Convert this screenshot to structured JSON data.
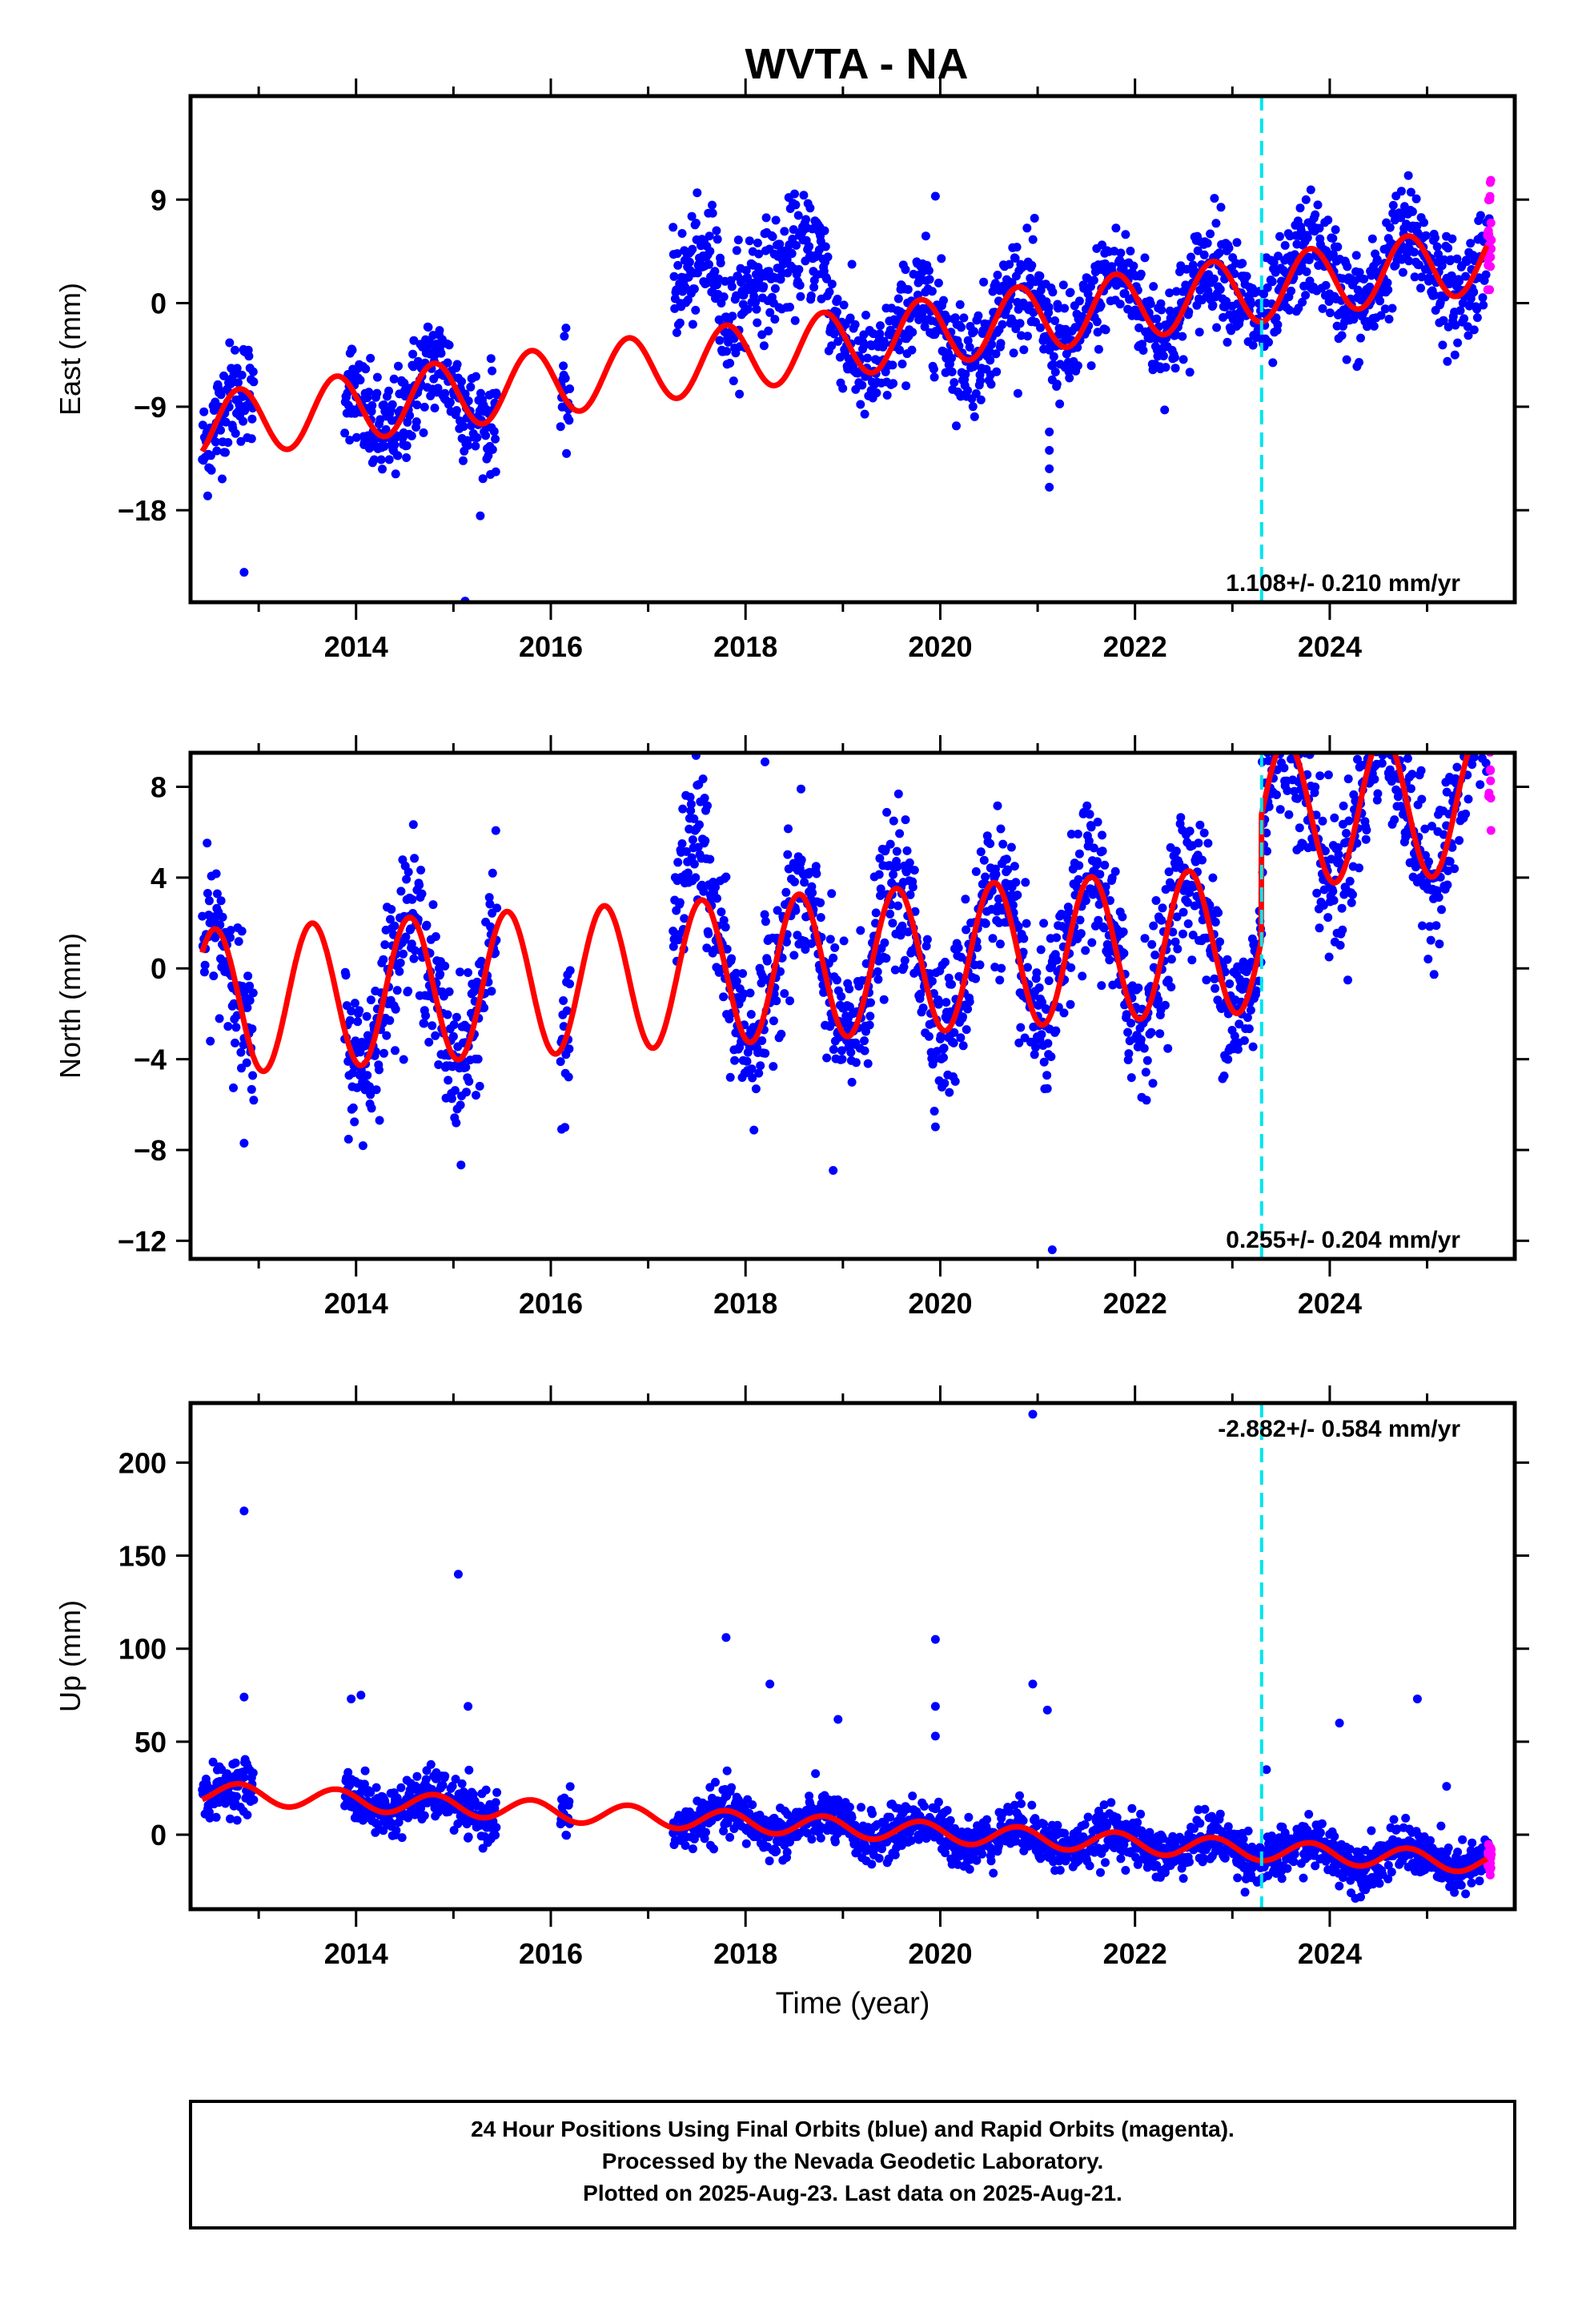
{
  "title": "WVTA - NA",
  "colors": {
    "final_orbits": "#0000ff",
    "rapid_orbits": "#ff00ff",
    "model": "#ff0000",
    "equipment_change": "#00e5ee",
    "frame": "#000000"
  },
  "chart_data": [
    {
      "type": "scatter",
      "ylabel": "East (mm)",
      "xlim": [
        2012.3,
        2025.9
      ],
      "ylim": [
        -26,
        18
      ],
      "xticks": [
        2014,
        2016,
        2018,
        2020,
        2022,
        2024
      ],
      "xtick_labels": [
        "2014",
        "2016",
        "2018",
        "2020",
        "2022",
        "2024"
      ],
      "yticks": [
        9,
        0,
        -9,
        -18
      ],
      "ytick_labels": [
        "9",
        "0",
        "−9",
        "−18"
      ],
      "velocity_text": "1.108+/- 0.210 mm/yr",
      "velocity_position": "bottom-right",
      "equipment_change_x": 2023.3,
      "model": {
        "offset": -10.8,
        "rate": 1.108,
        "t0": 2012.4,
        "amplitude": 2.9,
        "phase": 2012.55
      },
      "outliers": [
        [
          2012.85,
          -23.4
        ],
        [
          2015.12,
          -25.9
        ],
        [
          2019.95,
          9.3
        ],
        [
          2021.12,
          -11.2
        ],
        [
          2021.12,
          -12.8
        ],
        [
          2021.12,
          -14.4
        ],
        [
          2021.12,
          -16.0
        ]
      ]
    },
    {
      "type": "scatter",
      "ylabel": "North (mm)",
      "xlim": [
        2012.3,
        2025.9
      ],
      "ylim": [
        -12.8,
        9.5
      ],
      "xticks": [
        2014,
        2016,
        2018,
        2020,
        2022,
        2024
      ],
      "xtick_labels": [
        "2014",
        "2016",
        "2018",
        "2020",
        "2022",
        "2024"
      ],
      "yticks": [
        8,
        4,
        0,
        -4,
        -8,
        -12
      ],
      "ytick_labels": [
        "8",
        "4",
        "0",
        "−4",
        "−8",
        "−12"
      ],
      "velocity_text": "0.255+/- 0.204 mm/yr",
      "velocity_position": "bottom-right",
      "equipment_change_x": 2023.3,
      "model": {
        "offset": -1.5,
        "rate": 0.255,
        "t0": 2012.4,
        "amplitude": 3.2,
        "phase": 2012.3,
        "offset_after_change": 5.5
      },
      "outliers": [
        [
          2012.85,
          -7.7
        ],
        [
          2018.9,
          -8.9
        ],
        [
          2021.15,
          -12.4
        ],
        [
          2018.2,
          9.1
        ]
      ]
    },
    {
      "type": "scatter",
      "ylabel": "Up (mm)",
      "xlabel": "Time (year)",
      "xlim": [
        2012.3,
        2025.9
      ],
      "ylim": [
        -40,
        232
      ],
      "xticks": [
        2014,
        2016,
        2018,
        2020,
        2022,
        2024
      ],
      "xtick_labels": [
        "2014",
        "2016",
        "2018",
        "2020",
        "2022",
        "2024"
      ],
      "yticks": [
        200,
        150,
        100,
        50,
        0
      ],
      "ytick_labels": [
        "200",
        "150",
        "100",
        "50",
        "0"
      ],
      "velocity_text": "-2.882+/- 0.584 mm/yr",
      "velocity_position": "top-right",
      "equipment_change_x": 2023.3,
      "model": {
        "offset": 23,
        "rate": -2.882,
        "t0": 2012.4,
        "amplitude": 5.5,
        "phase": 2012.55
      },
      "outliers": [
        [
          2012.85,
          174
        ],
        [
          2012.85,
          74
        ],
        [
          2015.05,
          140
        ],
        [
          2015.15,
          69
        ],
        [
          2014.05,
          75
        ],
        [
          2013.95,
          73
        ],
        [
          2017.8,
          106
        ],
        [
          2018.25,
          81
        ],
        [
          2018.95,
          62
        ],
        [
          2019.95,
          105
        ],
        [
          2019.95,
          69
        ],
        [
          2019.95,
          53
        ],
        [
          2020.95,
          226
        ],
        [
          2020.95,
          81
        ],
        [
          2021.1,
          67
        ],
        [
          2023.35,
          35
        ],
        [
          2024.1,
          60
        ],
        [
          2024.9,
          73
        ],
        [
          2025.2,
          26
        ]
      ]
    }
  ],
  "footer": {
    "lines": [
      "24 Hour Positions Using Final Orbits (blue) and Rapid Orbits (magenta).",
      "Processed by the Nevada Geodetic Laboratory.",
      "Plotted on 2025-Aug-23. Last data on 2025-Aug-21."
    ]
  }
}
